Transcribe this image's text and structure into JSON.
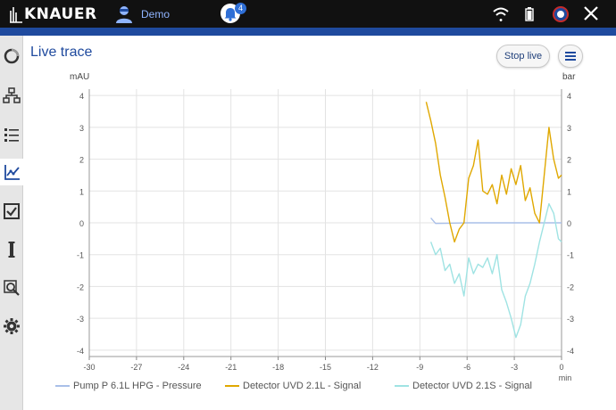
{
  "header": {
    "brand": "KNAUER",
    "user_name": "Demo",
    "notification_count": "4"
  },
  "page": {
    "title": "Live trace",
    "stop_button": "Stop live"
  },
  "sidebar": {
    "items": [
      {
        "name": "status-ring-icon"
      },
      {
        "name": "hierarchy-icon"
      },
      {
        "name": "list-icon"
      },
      {
        "name": "chart-icon",
        "active": true
      },
      {
        "name": "checkbox-icon"
      },
      {
        "name": "column-icon"
      },
      {
        "name": "zoom-search-icon"
      },
      {
        "name": "gear-icon"
      }
    ]
  },
  "colors": {
    "pressure": "#a9bfe8",
    "uvd_l": "#e0a800",
    "uvd_s": "#9fe3e3",
    "accent": "#1f4a9e"
  },
  "chart_data": {
    "type": "line",
    "xlabel": "min",
    "ylabel_left": "mAU",
    "ylabel_right": "bar",
    "xlim": [
      -30,
      0
    ],
    "ylim": [
      -4.2,
      4.2
    ],
    "xticks": [
      "-30",
      "-27",
      "-24",
      "-21",
      "-18",
      "-15",
      "-12",
      "-9",
      "-6",
      "-3",
      "0"
    ],
    "yticks": [
      "4",
      "3",
      "2",
      "1",
      "0",
      "-1",
      "-2",
      "-3",
      "-4"
    ],
    "grid": true,
    "legend_position": "bottom",
    "series": [
      {
        "name": "Pump P 6.1L HPG - Pressure",
        "x": [
          -8.3,
          -8.0,
          -7.0,
          -6.0,
          -5.0,
          -4.0,
          -3.0,
          -2.0,
          -1.0,
          0
        ],
        "y": [
          0.15,
          -0.02,
          -0.01,
          0.0,
          0.0,
          0.0,
          0.0,
          0.0,
          0.0,
          0.0
        ]
      },
      {
        "name": "Detector UVD 2.1L - Signal",
        "x": [
          -8.6,
          -8.3,
          -8.0,
          -7.7,
          -7.4,
          -7.1,
          -6.8,
          -6.5,
          -6.2,
          -5.9,
          -5.6,
          -5.3,
          -5.0,
          -4.7,
          -4.4,
          -4.1,
          -3.8,
          -3.5,
          -3.2,
          -2.9,
          -2.6,
          -2.3,
          -2.0,
          -1.7,
          -1.4,
          -1.1,
          -0.8,
          -0.5,
          -0.2,
          0
        ],
        "y": [
          3.8,
          3.2,
          2.5,
          1.5,
          0.8,
          0.0,
          -0.6,
          -0.2,
          0.0,
          1.4,
          1.8,
          2.6,
          1.0,
          0.9,
          1.2,
          0.6,
          1.5,
          0.9,
          1.7,
          1.2,
          1.8,
          0.7,
          1.1,
          0.3,
          0.0,
          1.5,
          3.0,
          2.0,
          1.4,
          1.5
        ]
      },
      {
        "name": "Detector UVD 2.1S - Signal",
        "x": [
          -8.3,
          -8.0,
          -7.7,
          -7.4,
          -7.1,
          -6.8,
          -6.5,
          -6.2,
          -5.9,
          -5.6,
          -5.3,
          -5.0,
          -4.7,
          -4.4,
          -4.1,
          -3.8,
          -3.5,
          -3.2,
          -2.9,
          -2.6,
          -2.3,
          -2.0,
          -1.7,
          -1.4,
          -1.1,
          -0.8,
          -0.5,
          -0.2,
          0
        ],
        "y": [
          -0.6,
          -1.0,
          -0.8,
          -1.5,
          -1.3,
          -1.9,
          -1.6,
          -2.3,
          -1.1,
          -1.6,
          -1.3,
          -1.4,
          -1.1,
          -1.6,
          -1.0,
          -2.1,
          -2.5,
          -3.0,
          -3.6,
          -3.2,
          -2.3,
          -1.9,
          -1.3,
          -0.6,
          0.0,
          0.6,
          0.3,
          -0.5,
          -0.6
        ]
      }
    ]
  }
}
